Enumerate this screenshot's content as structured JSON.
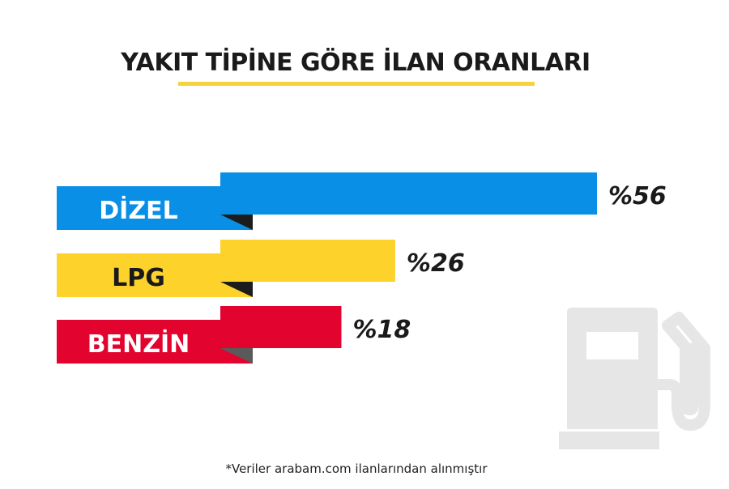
{
  "chart_data": {
    "type": "bar",
    "orientation": "horizontal",
    "title": "YAKIT TİPİNE GÖRE İLAN ORANLARI",
    "categories": [
      "DİZEL",
      "LPG",
      "BENZİN"
    ],
    "values": [
      56,
      26,
      18
    ],
    "value_labels": [
      "%56",
      "%26",
      "%18"
    ],
    "colors": [
      "#0a8fe6",
      "#fdd22a",
      "#e3032f"
    ],
    "label_text_colors": [
      "#ffffff",
      "#1a1a1a",
      "#ffffff"
    ],
    "ylim": [
      0,
      100
    ],
    "grid": false,
    "legend": "none",
    "footnote": "*Veriler arabam.com ilanlarından alınmıştır"
  },
  "colors": {
    "title_underline": "#f6d33c",
    "fold_shadow": "#1c1c1c",
    "fold_shadow_last": "#5a5a5a",
    "pump_icon": "#e6e6e6"
  },
  "decor": {
    "pump_icon_name": "fuel-pump-icon"
  }
}
